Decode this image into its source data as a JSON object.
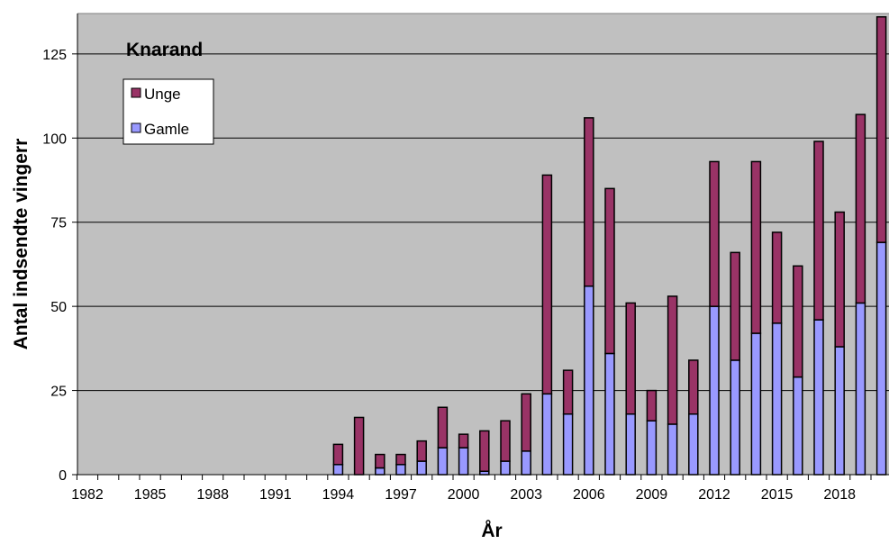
{
  "chart_data": {
    "type": "bar",
    "stacked": true,
    "title": "Knarand",
    "xlabel": "År",
    "ylabel": "Antal indsendte vingerr",
    "ylim": [
      0,
      137
    ],
    "yticks": [
      0,
      25,
      50,
      75,
      100,
      125
    ],
    "x_tick_labels": [
      "1982",
      "1985",
      "1988",
      "1991",
      "1994",
      "1997",
      "2000",
      "2003",
      "2006",
      "2009",
      "2012",
      "2015",
      "2018"
    ],
    "grid": true,
    "legend_position": "top-left",
    "categories": [
      1982,
      1983,
      1984,
      1985,
      1986,
      1987,
      1988,
      1989,
      1990,
      1991,
      1992,
      1993,
      1994,
      1995,
      1996,
      1997,
      1998,
      1999,
      2000,
      2001,
      2002,
      2003,
      2004,
      2005,
      2006,
      2007,
      2008,
      2009,
      2010,
      2011,
      2012,
      2013,
      2014,
      2015,
      2016,
      2017,
      2018,
      2019,
      2020
    ],
    "series": [
      {
        "name": "Gamle",
        "color": "#9999ff",
        "values": [
          0,
          0,
          0,
          0,
          0,
          0,
          0,
          0,
          0,
          0,
          0,
          0,
          3,
          0,
          2,
          3,
          4,
          8,
          8,
          1,
          4,
          7,
          24,
          18,
          56,
          36,
          18,
          16,
          15,
          18,
          50,
          34,
          42,
          45,
          29,
          46,
          38,
          51,
          69
        ]
      },
      {
        "name": "Unge",
        "color": "#993366",
        "values": [
          0,
          0,
          0,
          0,
          0,
          0,
          0,
          0,
          0,
          0,
          0,
          0,
          6,
          17,
          4,
          3,
          6,
          12,
          4,
          12,
          12,
          17,
          65,
          13,
          50,
          49,
          33,
          9,
          38,
          16,
          43,
          32,
          51,
          27,
          33,
          53,
          40,
          56,
          67
        ]
      }
    ],
    "plot_background": "#c0c0c0",
    "legend_order": [
      "Unge",
      "Gamle"
    ]
  }
}
